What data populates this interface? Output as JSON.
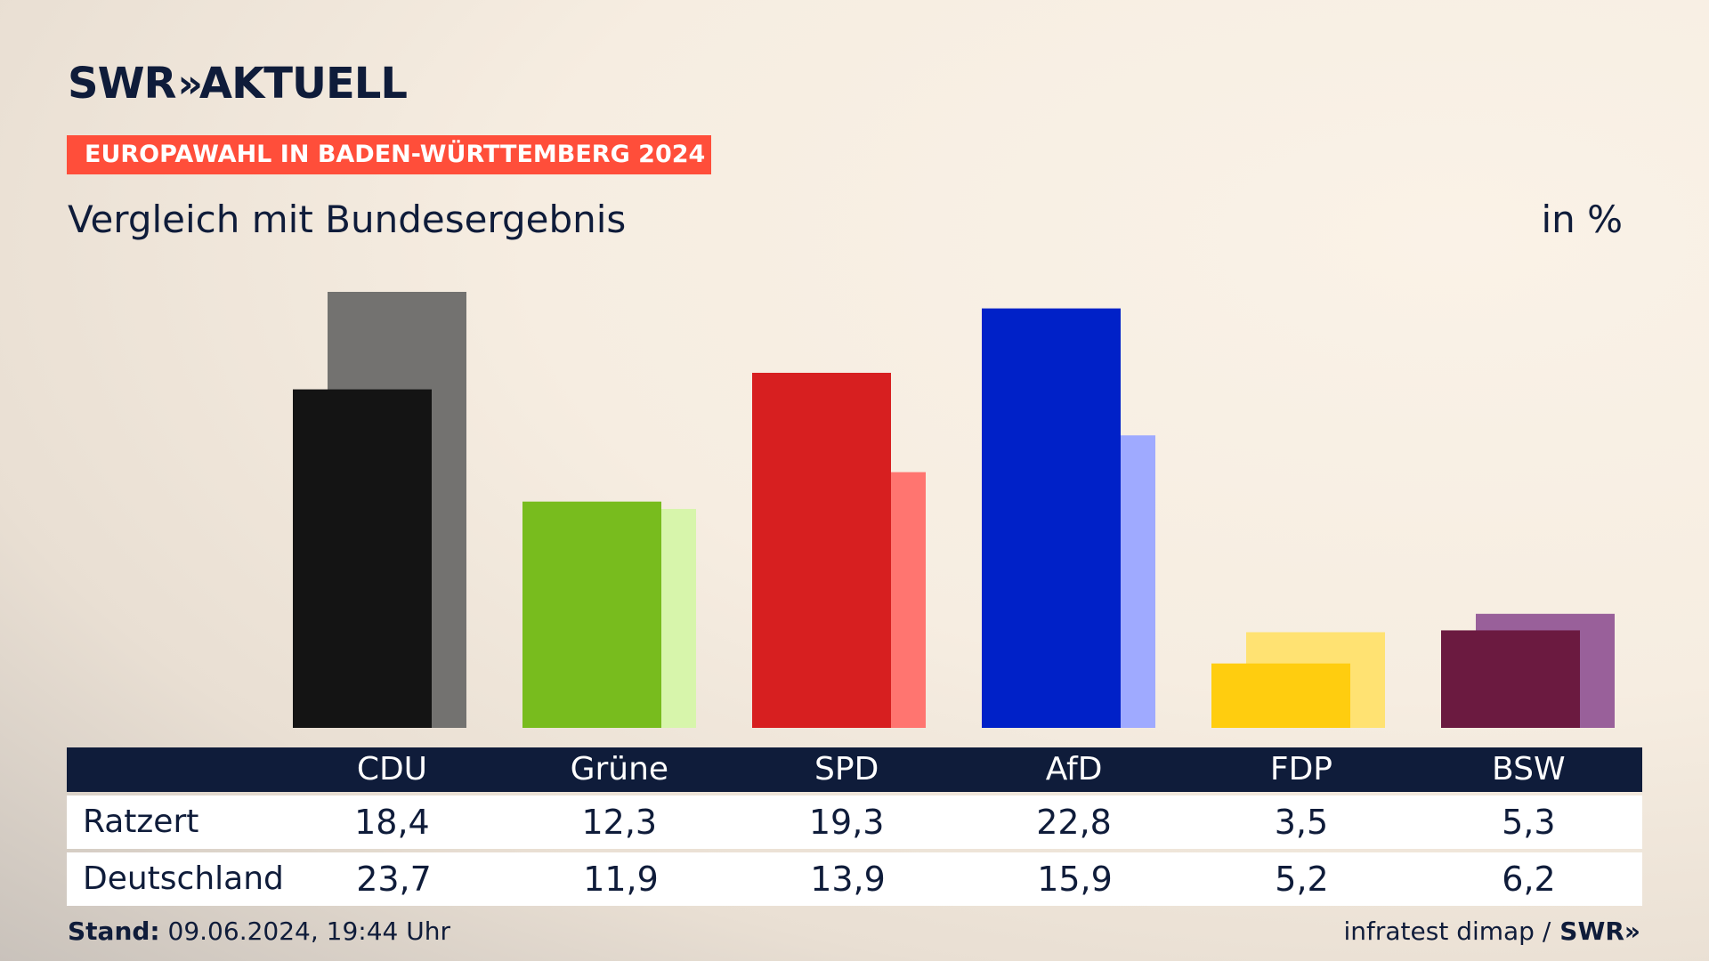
{
  "header": {
    "logo_text": "SWR",
    "logo_chevrons": "»",
    "logo_suffix": "AKTUELL",
    "banner": "EUROPAWAHL IN BADEN-WÜRTTEMBERG 2024",
    "subtitle": "Vergleich mit Bundesergebnis",
    "unit": "in %"
  },
  "colors": {
    "banner": "#ff4e3a",
    "navy": "#0f1c3a",
    "CDU": [
      "#141414",
      "#737270"
    ],
    "Grüne": [
      "#78bc1e",
      "#d7f5ab"
    ],
    "SPD": [
      "#d71f20",
      "#ff7570"
    ],
    "AfD": [
      "#0021c8",
      "#9faaff"
    ],
    "FDP": [
      "#ffcd0f",
      "#ffe272"
    ],
    "BSW": [
      "#6b1a40",
      "#99609a"
    ]
  },
  "chart_data": {
    "type": "bar",
    "categories": [
      "CDU",
      "Grüne",
      "SPD",
      "AfD",
      "FDP",
      "BSW"
    ],
    "series": [
      {
        "name": "Ratzert",
        "values": [
          18.4,
          12.3,
          19.3,
          22.8,
          3.5,
          5.3
        ]
      },
      {
        "name": "Deutschland",
        "values": [
          23.7,
          11.9,
          13.9,
          15.9,
          5.2,
          6.2
        ]
      }
    ],
    "title": "Vergleich mit Bundesergebnis",
    "xlabel": "",
    "ylabel": "",
    "ylim": [
      0,
      23.7
    ]
  },
  "table": {
    "header_label": "",
    "rows": [
      {
        "label": "Ratzert",
        "values": [
          "18,4",
          "12,3",
          "19,3",
          "22,8",
          "3,5",
          "5,3"
        ]
      },
      {
        "label": "Deutschland",
        "values": [
          "23,7",
          "11,9",
          "13,9",
          "15,9",
          "5,2",
          "6,2"
        ]
      }
    ]
  },
  "footer": {
    "stand_label": "Stand:",
    "stand_value": "09.06.2024, 19:44 Uhr",
    "source": "infratest dimap /",
    "source_logo": "SWR»"
  }
}
